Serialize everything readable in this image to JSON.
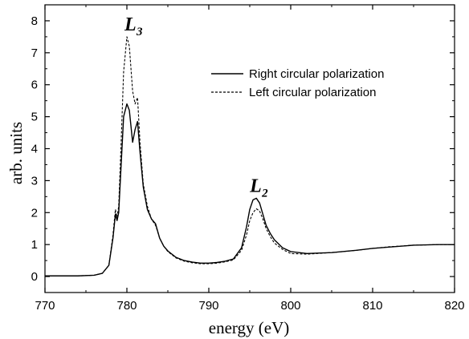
{
  "chart_data": {
    "type": "line",
    "xlabel": "energy (eV)",
    "ylabel": "arb. units",
    "xlim": [
      770,
      820
    ],
    "ylim": [
      -0.5,
      8.5
    ],
    "xticks": [
      770,
      780,
      790,
      800,
      810,
      820
    ],
    "yticks": [
      0,
      1,
      2,
      3,
      4,
      5,
      6,
      7,
      8
    ],
    "grid": false,
    "legend_position": "top-right",
    "annotations": [
      {
        "main": "L",
        "sub": "3",
        "x": 780.3,
        "y": 7.7
      },
      {
        "main": "L",
        "sub": "2",
        "x": 795.6,
        "y": 2.65
      }
    ],
    "series": [
      {
        "name": "Right circular polarization",
        "style": "solid",
        "x": [
          770,
          774,
          776,
          777,
          777.8,
          778.3,
          778.6,
          778.8,
          779.0,
          779.3,
          779.6,
          780.0,
          780.3,
          780.7,
          781.0,
          781.3,
          781.6,
          782.0,
          782.5,
          783.0,
          783.5,
          784.0,
          784.5,
          785,
          786,
          787,
          788,
          789,
          790,
          791,
          792,
          793,
          794,
          794.6,
          795.0,
          795.4,
          795.8,
          796.2,
          796.6,
          797.0,
          797.5,
          798,
          799,
          800,
          802,
          805,
          808,
          810,
          812,
          815,
          818,
          820
        ],
        "y": [
          0.02,
          0.02,
          0.04,
          0.1,
          0.35,
          1.2,
          1.95,
          1.75,
          2.0,
          3.5,
          5.0,
          5.4,
          5.2,
          4.2,
          4.6,
          4.85,
          3.9,
          2.8,
          2.1,
          1.8,
          1.65,
          1.2,
          0.95,
          0.8,
          0.6,
          0.5,
          0.45,
          0.42,
          0.42,
          0.44,
          0.48,
          0.55,
          0.9,
          1.55,
          2.1,
          2.4,
          2.45,
          2.3,
          1.95,
          1.6,
          1.35,
          1.15,
          0.9,
          0.78,
          0.72,
          0.75,
          0.82,
          0.88,
          0.92,
          0.98,
          1.0,
          1.0
        ]
      },
      {
        "name": "Left circular polarization",
        "style": "dashed",
        "x": [
          770,
          774,
          776,
          777,
          777.8,
          778.3,
          778.6,
          778.8,
          779.0,
          779.3,
          779.6,
          780.0,
          780.3,
          780.7,
          781.0,
          781.3,
          781.6,
          782.0,
          782.5,
          783.0,
          783.5,
          784.0,
          784.5,
          785,
          786,
          787,
          788,
          789,
          790,
          791,
          792,
          793,
          794,
          794.6,
          795.0,
          795.4,
          795.8,
          796.2,
          796.6,
          797.0,
          797.5,
          798,
          799,
          800,
          802,
          805,
          808,
          810,
          812,
          815,
          818,
          820
        ],
        "y": [
          0.02,
          0.02,
          0.04,
          0.1,
          0.35,
          1.3,
          2.1,
          1.85,
          2.2,
          4.2,
          6.4,
          7.5,
          7.2,
          5.8,
          5.4,
          5.6,
          4.2,
          2.9,
          2.2,
          1.8,
          1.6,
          1.2,
          0.95,
          0.78,
          0.58,
          0.48,
          0.43,
          0.4,
          0.4,
          0.42,
          0.46,
          0.52,
          0.82,
          1.3,
          1.75,
          2.0,
          2.12,
          2.05,
          1.8,
          1.5,
          1.25,
          1.05,
          0.85,
          0.72,
          0.7,
          0.75,
          0.82,
          0.88,
          0.93,
          0.98,
          1.0,
          1.0
        ]
      }
    ]
  }
}
